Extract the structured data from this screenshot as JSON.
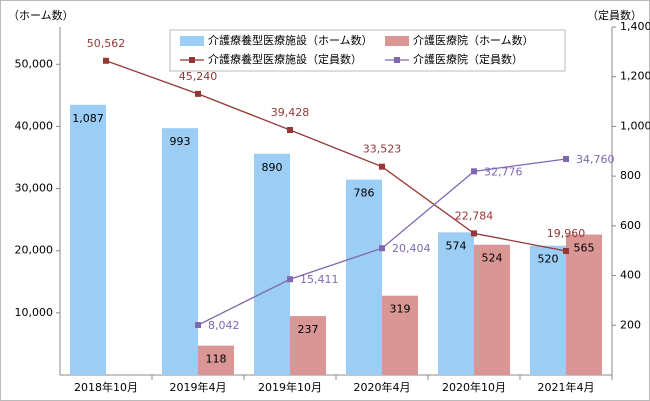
{
  "chart_data": {
    "type": "bar-line",
    "left_axis_title": "（ホーム数）",
    "right_axis_title": "（定員数）",
    "categories": [
      "2018年10月",
      "2019年4月",
      "2019年10月",
      "2020年4月",
      "2020年10月",
      "2021年4月"
    ],
    "ylim": [
      0,
      56000
    ],
    "yticks": [
      {
        "value": 10000,
        "label": "10,000"
      },
      {
        "value": 20000,
        "label": "20,000"
      },
      {
        "value": 30000,
        "label": "30,000"
      },
      {
        "value": 40000,
        "label": "40,000"
      },
      {
        "value": 50000,
        "label": "50,000"
      }
    ],
    "y2lim": [
      0,
      1400
    ],
    "y2ticks": [
      200,
      400,
      600,
      800,
      {
        "value": 1000,
        "label": "1,000"
      },
      {
        "value": 1200,
        "label": "1,200"
      },
      {
        "value": 1400,
        "label": "1,400"
      }
    ],
    "legend": "top",
    "series": [
      {
        "name": "介護療養型医療施設（ホーム数）",
        "kind": "bar",
        "axis": "y2",
        "color": "#9bcdf5",
        "values": [
          1087,
          993,
          890,
          786,
          574,
          520
        ],
        "value_labels": [
          "1,087",
          "993",
          "890",
          "786",
          "574",
          "520"
        ]
      },
      {
        "name": "介護医療院（ホーム数）",
        "kind": "bar",
        "axis": "y2",
        "color": "#d99694",
        "values": [
          null,
          118,
          237,
          319,
          524,
          565
        ],
        "value_labels": [
          null,
          "118",
          "237",
          "319",
          "524",
          "565"
        ]
      },
      {
        "name": "介護療養型医療施設（定員数）",
        "kind": "line",
        "color": "#953735",
        "values": [
          50562,
          45240,
          39428,
          33523,
          22784,
          19960
        ],
        "value_labels": [
          "50,562",
          "45,240",
          "39,428",
          "33,523",
          "22,784",
          "19,960"
        ]
      },
      {
        "name": "介護医療院（定員数）",
        "kind": "line",
        "color": "#7f68b0",
        "values": [
          null,
          8042,
          15411,
          20404,
          32776,
          34760
        ],
        "value_labels": [
          null,
          "8,042",
          "15,411",
          "20,404",
          "32,776",
          "34,760"
        ]
      }
    ]
  }
}
